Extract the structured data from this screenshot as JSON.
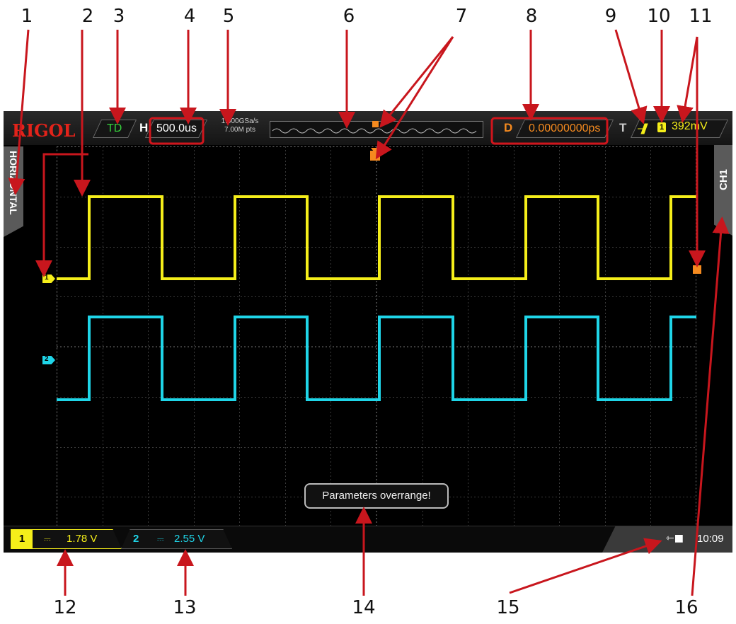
{
  "callouts": [
    "1",
    "2",
    "3",
    "4",
    "5",
    "6",
    "7",
    "8",
    "9",
    "10",
    "11",
    "12",
    "13",
    "14",
    "15",
    "16"
  ],
  "scope": {
    "logo": "RIGOL",
    "trigger_status": "TD",
    "horizontal_label": "H",
    "timebase": "500.0us",
    "sample_rate": "1.000GSa/s",
    "memory_depth": "7.00M pts",
    "delay_label": "D",
    "delay_value": "0.00000000ps",
    "trigger_label": "T",
    "trigger_source": "1",
    "trigger_level": "392mV",
    "left_tab": "HORIZONTAL",
    "right_tab": "CH1",
    "ch1_marker": "1",
    "ch2_marker": "2",
    "ch1_number": "1",
    "ch1_scale": "1.78 V",
    "ch2_number": "2",
    "ch2_scale": "2.55 V",
    "coupling_symbol": "⎓",
    "message": "Parameters overrange!",
    "clock": "10:09"
  },
  "colors": {
    "ch1": "#f5ee1a",
    "ch2": "#1fd5e8",
    "trigger": "#f58a1f",
    "callout_arrow": "#c8161d",
    "logo": "#e2231a"
  },
  "icons": [
    "trigger-edge-rising-icon",
    "trigger-marker-icon",
    "usb-icon"
  ]
}
